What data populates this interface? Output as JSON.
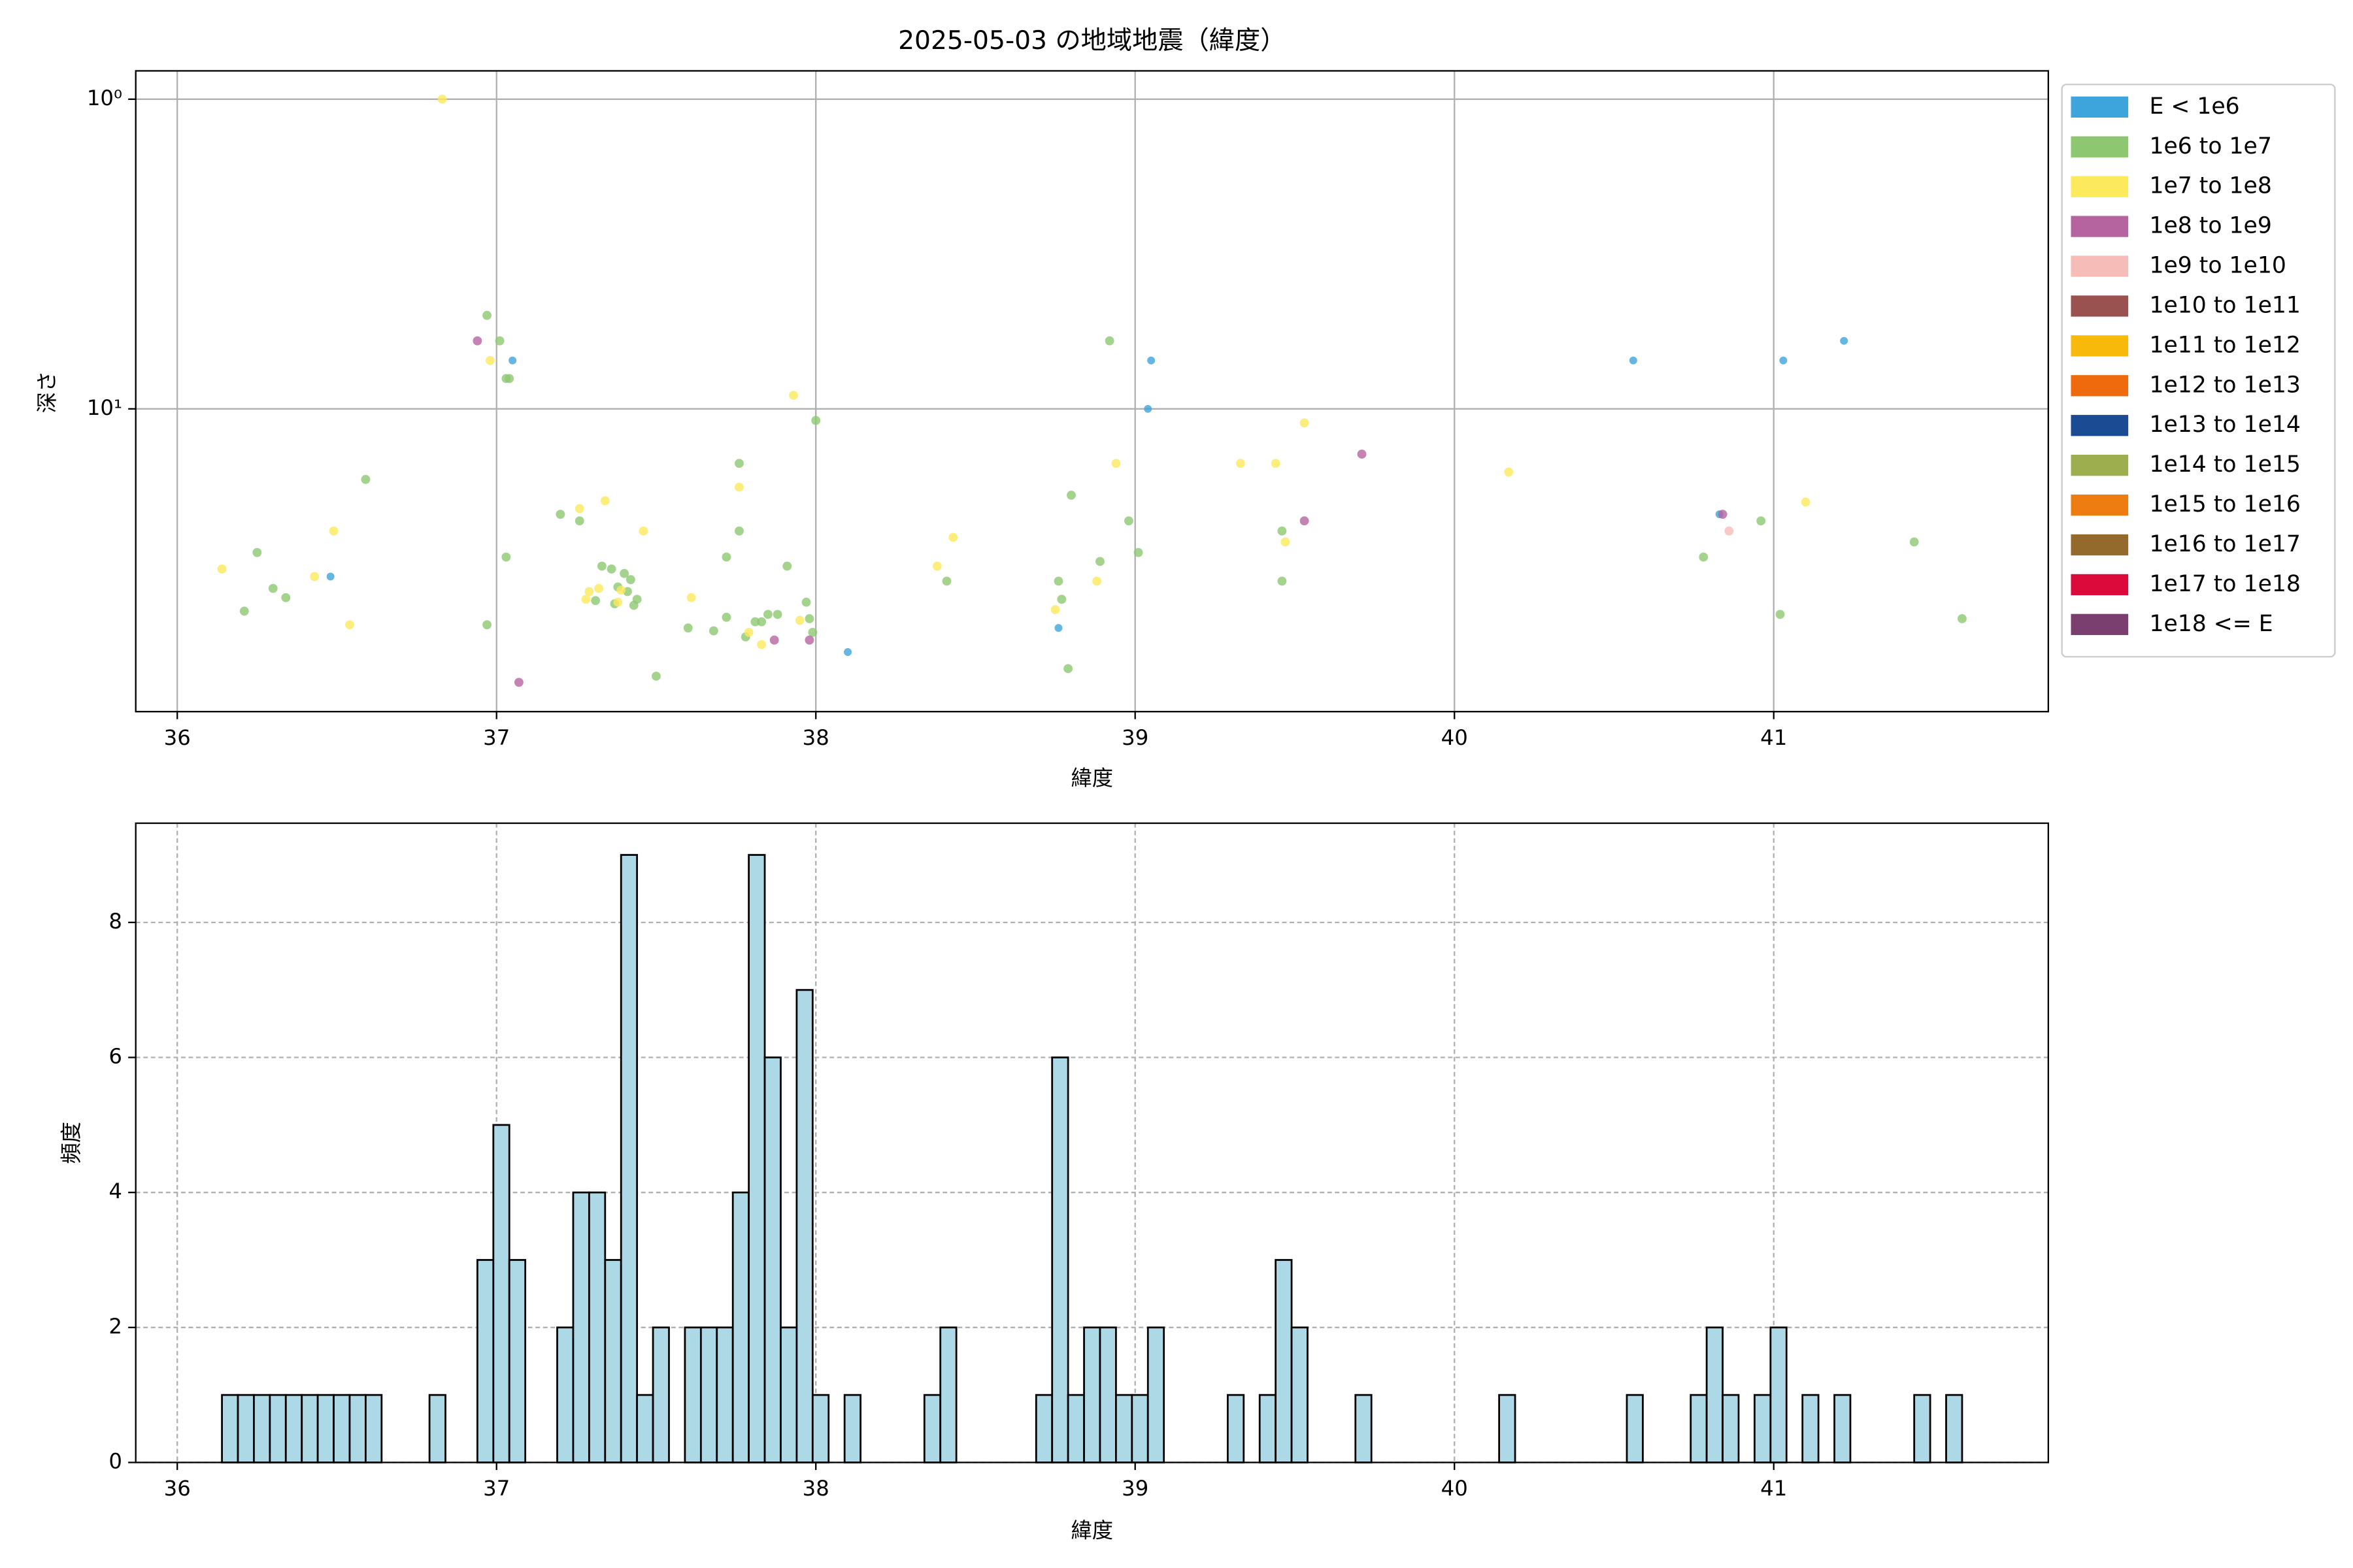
{
  "chart_data": [
    {
      "type": "scatter",
      "title": "2025-05-03 の地域地震（緯度）",
      "xlabel": "緯度",
      "ylabel": "深さ",
      "xlim": [
        35.87,
        41.86
      ],
      "xticks": [
        36,
        37,
        38,
        39,
        40,
        41
      ],
      "ylim": [
        0.81,
        95
      ],
      "y_log": true,
      "y_inverted": true,
      "yticks": [
        {
          "value": 1,
          "label": "10⁰"
        },
        {
          "value": 10,
          "label": "10¹"
        }
      ],
      "grid": true,
      "legend": "outside-right",
      "series": [
        {
          "name": "E < 1e6",
          "color": "#3ea4dc",
          "x": [
            36.48,
            37.05,
            38.76,
            38.1,
            39.05,
            39.04,
            40.56,
            41.03,
            41.22,
            40.83
          ],
          "values": [
            34.8,
            6.98,
            51.0,
            61.0,
            6.98,
            10,
            6.98,
            6.98,
            6.03,
            21.9
          ]
        },
        {
          "name": "1e6 to 1e7",
          "color": "#8dc870",
          "x": [
            36.21,
            36.25,
            36.3,
            36.34,
            36.59,
            36.97,
            37.01,
            37.03,
            37.04,
            37.03,
            36.97,
            37.2,
            37.26,
            37.31,
            37.33,
            37.36,
            37.38,
            37.4,
            37.42,
            37.43,
            37.44,
            37.41,
            37.37,
            37.5,
            37.6,
            37.68,
            37.72,
            37.72,
            37.76,
            37.76,
            37.78,
            37.81,
            37.83,
            37.85,
            37.88,
            37.91,
            37.97,
            37.98,
            38.0,
            37.99,
            38.41,
            38.76,
            38.77,
            38.79,
            38.8,
            38.89,
            38.92,
            38.98,
            39.01,
            39.46,
            39.46,
            40.78,
            40.96,
            41.02,
            41.44,
            41.59
          ],
          "values": [
            45.0,
            29.1,
            38.0,
            40.7,
            16.9,
            4.99,
            6.03,
            7.98,
            7.98,
            30.1,
            49.8,
            21.9,
            23.0,
            41.6,
            32.2,
            32.9,
            37.6,
            34.0,
            35.6,
            43.1,
            41.2,
            38.9,
            42.6,
            73.0,
            51.0,
            52.1,
            30.1,
            47.1,
            15.0,
            24.8,
            54.5,
            48.7,
            48.7,
            46.1,
            46.1,
            32.2,
            42.1,
            47.6,
            10.9,
            52.7,
            36.0,
            36.0,
            41.2,
            69.0,
            19.0,
            31.1,
            6.03,
            23.0,
            29.1,
            36.0,
            24.8,
            30.1,
            23.0,
            46.1,
            26.9,
            47.6
          ]
        },
        {
          "name": "1e7 to 1e8",
          "color": "#fde95c",
          "x": [
            36.14,
            36.43,
            36.49,
            36.54,
            36.83,
            36.98,
            37.26,
            37.29,
            37.28,
            37.34,
            37.32,
            37.38,
            37.39,
            37.46,
            37.61,
            37.76,
            37.79,
            37.83,
            37.93,
            37.95,
            38.38,
            38.43,
            38.75,
            38.88,
            38.94,
            39.33,
            39.44,
            39.47,
            39.53,
            40.17,
            41.1
          ],
          "values": [
            32.9,
            34.8,
            24.8,
            49.8,
            1.0,
            6.98,
            21.0,
            38.9,
            41.2,
            19.8,
            38.0,
            42.1,
            38.5,
            24.8,
            40.7,
            17.9,
            52.7,
            57.7,
            9.04,
            48.2,
            32.2,
            26.0,
            44.5,
            36.0,
            15.0,
            15.0,
            15.0,
            26.9,
            11.1,
            16.0,
            20.0
          ]
        },
        {
          "name": "1e8 to 1e9",
          "color": "#b5649f",
          "x": [
            36.94,
            37.07,
            37.87,
            37.98,
            39.53,
            39.71,
            40.84
          ],
          "values": [
            6.03,
            76.4,
            55.8,
            55.8,
            23.0,
            14.0,
            21.9
          ]
        },
        {
          "name": "1e9 to 1e10",
          "color": "#f6bcb8",
          "x": [
            40.86
          ],
          "values": [
            24.8
          ]
        },
        {
          "name": "1e10 to 1e11",
          "color": "#9a5250",
          "x": [],
          "values": []
        },
        {
          "name": "1e11 to 1e12",
          "color": "#f9b90b",
          "x": [],
          "values": []
        },
        {
          "name": "1e12 to 1e13",
          "color": "#ef6a0c",
          "x": [],
          "values": []
        },
        {
          "name": "1e13 to 1e14",
          "color": "#1b4b93",
          "x": [],
          "values": []
        },
        {
          "name": "1e14 to 1e15",
          "color": "#9cae4e",
          "x": [],
          "values": []
        },
        {
          "name": "1e15 to 1e16",
          "color": "#ee7d11",
          "x": [],
          "values": []
        },
        {
          "name": "1e16 to 1e17",
          "color": "#936a2b",
          "x": [],
          "values": []
        },
        {
          "name": "1e17 to 1e18",
          "color": "#dc0a3b",
          "x": [],
          "values": []
        },
        {
          "name": "1e18 <= E",
          "color": "#7a3e6f",
          "x": [],
          "values": []
        }
      ]
    },
    {
      "type": "histogram",
      "xlabel": "緯度",
      "ylabel": "頻度",
      "color": "#add8e6",
      "edgecolor": "#000000",
      "xlim": [
        35.87,
        41.86
      ],
      "xticks": [
        36,
        37,
        38,
        39,
        40,
        41
      ],
      "ylim": [
        0,
        9.47
      ],
      "yticks": [
        0,
        2,
        4,
        6,
        8
      ],
      "grid": true,
      "grid_style": "dashed",
      "bins": [
        36.14,
        36.19,
        36.24,
        36.29,
        36.34,
        36.39,
        36.44,
        36.49,
        36.54,
        36.59,
        36.64,
        36.69,
        36.74,
        36.79,
        36.84,
        36.89,
        36.94,
        36.99,
        37.04,
        37.09,
        37.14,
        37.19,
        37.24,
        37.29,
        37.34,
        37.39,
        37.44,
        37.49,
        37.54,
        37.59,
        37.64,
        37.69,
        37.74,
        37.79,
        37.84,
        37.89,
        37.94,
        37.99,
        38.04,
        38.09,
        38.14,
        38.19,
        38.24,
        38.29,
        38.34,
        38.39,
        38.44,
        38.49,
        38.54,
        38.59,
        38.64,
        38.69,
        38.74,
        38.79,
        38.84,
        38.89,
        38.94,
        38.99,
        39.04,
        39.09,
        39.14,
        39.19,
        39.24,
        39.29,
        39.34,
        39.39,
        39.44,
        39.49,
        39.54,
        39.59,
        39.64,
        39.69,
        39.74,
        39.79,
        39.84,
        39.89,
        39.94,
        39.99,
        40.04,
        40.09,
        40.14,
        40.19,
        40.24,
        40.29,
        40.34,
        40.39,
        40.44,
        40.49,
        40.54,
        40.59,
        40.64,
        40.69,
        40.74,
        40.79,
        40.84,
        40.89,
        40.94,
        40.99,
        41.04,
        41.09,
        41.14,
        41.19,
        41.24,
        41.29,
        41.34,
        41.39,
        41.44,
        41.49,
        41.54,
        41.59
      ],
      "values": [
        1,
        1,
        1,
        1,
        1,
        1,
        1,
        1,
        1,
        1,
        0,
        0,
        0,
        1,
        0,
        0,
        3,
        5,
        3,
        0,
        0,
        2,
        4,
        4,
        3,
        9,
        1,
        2,
        0,
        2,
        2,
        2,
        4,
        9,
        6,
        2,
        7,
        1,
        0,
        1,
        0,
        0,
        0,
        0,
        1,
        2,
        0,
        0,
        0,
        0,
        0,
        1,
        6,
        1,
        2,
        2,
        1,
        1,
        2,
        0,
        0,
        0,
        0,
        1,
        0,
        1,
        3,
        2,
        0,
        0,
        0,
        1,
        0,
        0,
        0,
        0,
        0,
        0,
        0,
        0,
        1,
        0,
        0,
        0,
        0,
        0,
        0,
        0,
        1,
        0,
        0,
        0,
        1,
        2,
        1,
        0,
        1,
        2,
        0,
        1,
        0,
        1,
        0,
        0,
        0,
        0,
        1,
        0,
        1
      ]
    }
  ]
}
